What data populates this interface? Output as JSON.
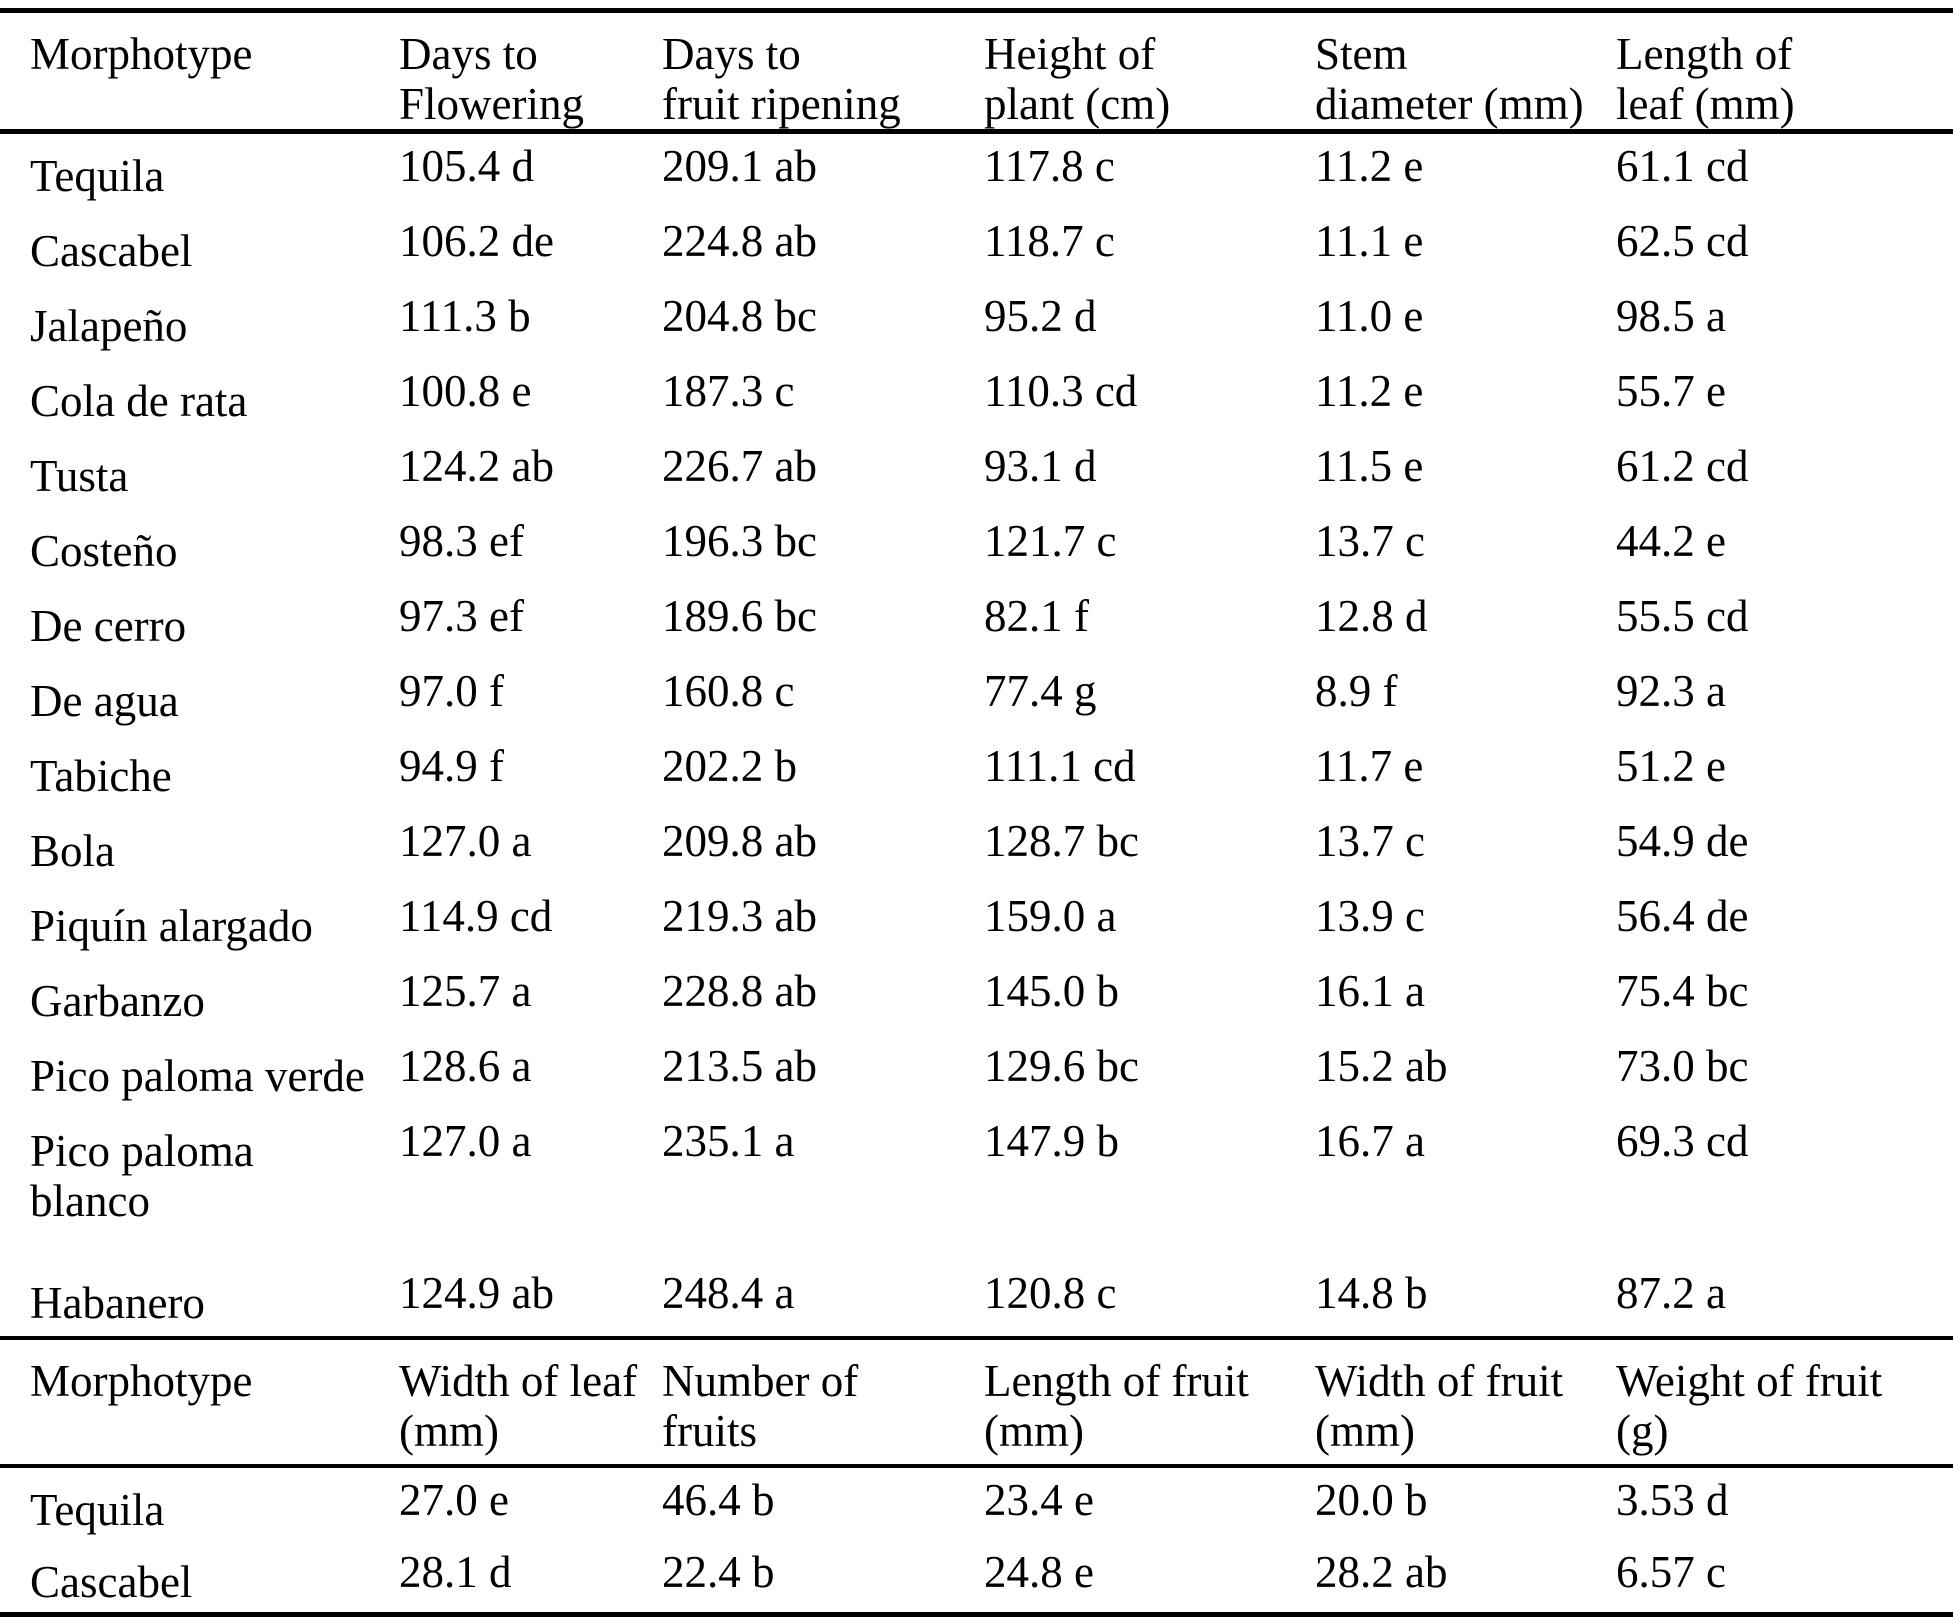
{
  "page": {
    "background_color": "#ffffff",
    "text_color": "#000000",
    "rule_color": "#000000"
  },
  "table": {
    "sections": [
      {
        "headers": [
          "Morphotype",
          "Days to\nFlowering",
          "Days to\nfruit ripening",
          "Height of\nplant (cm)",
          "Stem\ndiameter (mm)",
          "Length of\nleaf (mm)"
        ],
        "rows": [
          {
            "name": "Tequila",
            "values": [
              "105.4 d",
              "209.1 ab",
              "117.8 c",
              "11.2 e",
              "61.1 cd"
            ]
          },
          {
            "name": "Cascabel",
            "values": [
              "106.2 de",
              "224.8 ab",
              "118.7 c",
              "11.1 e",
              "62.5 cd"
            ]
          },
          {
            "name": "Jalapeño",
            "values": [
              "111.3 b",
              "204.8 bc",
              "95.2 d",
              "11.0 e",
              "98.5 a"
            ]
          },
          {
            "name": "Cola de rata",
            "values": [
              "100.8 e",
              "187.3 c",
              "110.3 cd",
              "11.2 e",
              "55.7 e"
            ]
          },
          {
            "name": "Tusta",
            "values": [
              "124.2 ab",
              "226.7 ab",
              "93.1 d",
              "11.5 e",
              "61.2 cd"
            ]
          },
          {
            "name": "Costeño",
            "values": [
              "98.3 ef",
              "196.3 bc",
              "121.7 c",
              "13.7 c",
              "44.2 e"
            ]
          },
          {
            "name": "De cerro",
            "values": [
              "97.3 ef",
              "189.6 bc",
              "82.1 f",
              "12.8 d",
              "55.5 cd"
            ]
          },
          {
            "name": "De agua",
            "values": [
              "97.0 f",
              "160.8 c",
              "77.4 g",
              "8.9 f",
              "92.3 a"
            ]
          },
          {
            "name": "Tabiche",
            "values": [
              "94.9 f",
              "202.2 b",
              "111.1 cd",
              "11.7 e",
              "51.2 e"
            ]
          },
          {
            "name": "Bola",
            "values": [
              "127.0 a",
              "209.8 ab",
              "128.7 bc",
              "13.7 c",
              "54.9 de"
            ]
          },
          {
            "name": "Piquín alargado",
            "values": [
              "114.9 cd",
              "219.3 ab",
              "159.0 a",
              "13.9 c",
              "56.4 de"
            ]
          },
          {
            "name": "Garbanzo",
            "values": [
              "125.7 a",
              "228.8 ab",
              "145.0 b",
              "16.1 a",
              "75.4 bc"
            ]
          },
          {
            "name": "Pico paloma verde",
            "values": [
              "128.6 a",
              "213.5 ab",
              "129.6 bc",
              "15.2 ab",
              "73.0 bc"
            ]
          },
          {
            "name": "Pico paloma\nblanco",
            "values": [
              "127.0 a",
              "235.1 a",
              "147.9 b",
              "16.7 a",
              "69.3 cd"
            ],
            "tall": true
          },
          {
            "name": "Habanero",
            "values": [
              "124.9 ab",
              "248.4 a",
              "120.8 c",
              "14.8 b",
              "87.2 a"
            ]
          }
        ]
      },
      {
        "headers": [
          "Morphotype",
          "Width of leaf\n(mm)",
          "Number of\nfruits",
          "Length of fruit\n(mm)",
          "Width of fruit\n(mm)",
          "Weight of fruit\n(g)"
        ],
        "rows": [
          {
            "name": "Tequila",
            "values": [
              "27.0 e",
              "46.4 b",
              "23.4 e",
              "20.0 b",
              "3.53 d"
            ]
          },
          {
            "name": "Cascabel",
            "values": [
              "28.1 d",
              "22.4 b",
              "24.8 e",
              "28.2 ab",
              "6.57 c"
            ]
          }
        ]
      }
    ]
  }
}
